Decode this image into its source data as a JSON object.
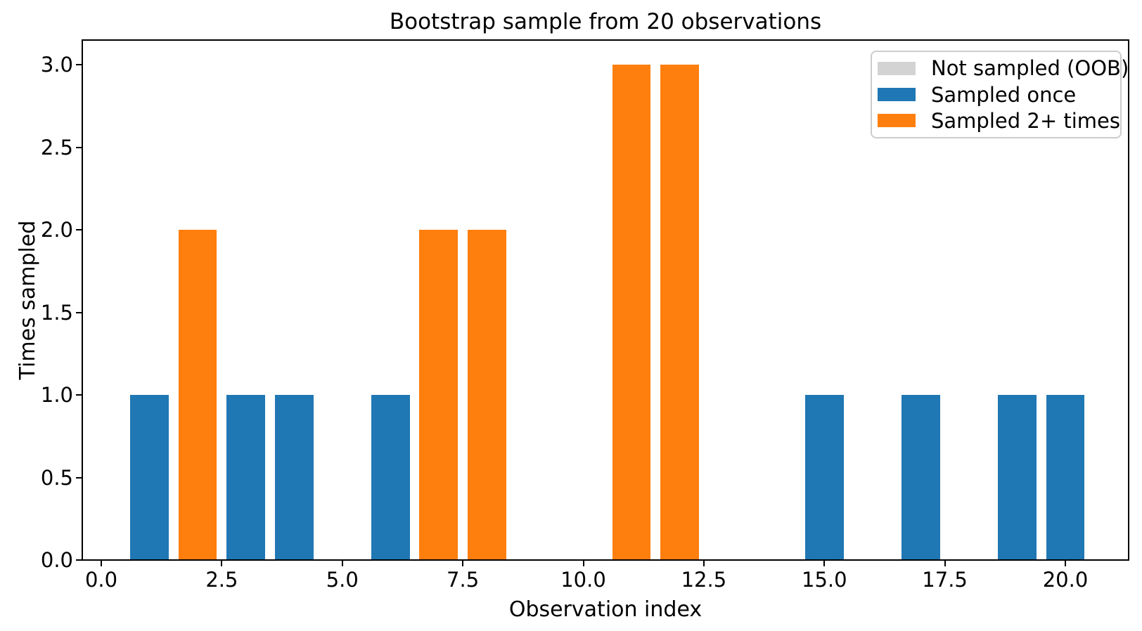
{
  "chart_data": {
    "type": "bar",
    "title": "Bootstrap sample from 20 observations",
    "xlabel": "Observation index",
    "ylabel": "Times sampled",
    "x": [
      1,
      2,
      3,
      4,
      5,
      6,
      7,
      8,
      9,
      10,
      11,
      12,
      13,
      14,
      15,
      16,
      17,
      18,
      19,
      20
    ],
    "values": [
      1,
      2,
      1,
      1,
      0,
      1,
      2,
      2,
      0,
      0,
      3,
      3,
      0,
      0,
      1,
      0,
      1,
      0,
      1,
      1
    ],
    "bar_width": 0.8,
    "xlim": [
      -0.39,
      21.31
    ],
    "ylim": [
      0,
      3.15
    ],
    "xticks": [
      0,
      2.5,
      5,
      7.5,
      10,
      12.5,
      15,
      17.5,
      20
    ],
    "yticks": [
      0,
      0.5,
      1,
      1.5,
      2,
      2.5,
      3
    ],
    "tick_decimals": 1,
    "grid": false,
    "legend_position": "upper right",
    "colors": {
      "oob": "#d3d3d3",
      "once": "#1f77b4",
      "multi": "#ff7f0e",
      "spine": "#000000",
      "legend_edge": "#cccccc"
    },
    "color_rule": {
      "count_0": "oob",
      "count_1": "once",
      "count_2_plus": "multi"
    },
    "legend": [
      {
        "key": "oob",
        "label": "Not sampled (OOB)",
        "color": "#d3d3d3"
      },
      {
        "key": "once",
        "label": "Sampled once",
        "color": "#1f77b4"
      },
      {
        "key": "multi",
        "label": "Sampled 2+ times",
        "color": "#ff7f0e"
      }
    ]
  }
}
